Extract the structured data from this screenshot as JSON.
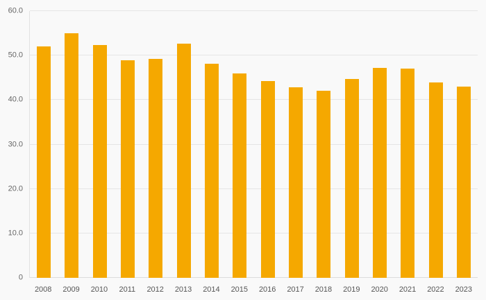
{
  "chart_data": {
    "type": "bar",
    "title": "",
    "xlabel": "",
    "ylabel": "",
    "categories": [
      "2008",
      "2009",
      "2010",
      "2011",
      "2012",
      "2013",
      "2014",
      "2015",
      "2016",
      "2017",
      "2018",
      "2019",
      "2020",
      "2021",
      "2022",
      "2023"
    ],
    "values": [
      52.0,
      55.0,
      52.4,
      49.0,
      49.3,
      52.6,
      48.1,
      46.0,
      44.3,
      42.9,
      42.1,
      44.8,
      47.3,
      47.0,
      44.0,
      43.0
    ],
    "ylim": [
      0,
      60
    ],
    "yticks": [
      0,
      10,
      20,
      30,
      40,
      50,
      60
    ],
    "ytick_labels": [
      "0",
      "10.0",
      "20.0",
      "30.0",
      "40.0",
      "50.0",
      "60.0"
    ],
    "bar_color": "#F5A800",
    "background_color": "#f9f9f9",
    "gridline_color": "#e5e5e5",
    "grid": true,
    "legend": false
  }
}
